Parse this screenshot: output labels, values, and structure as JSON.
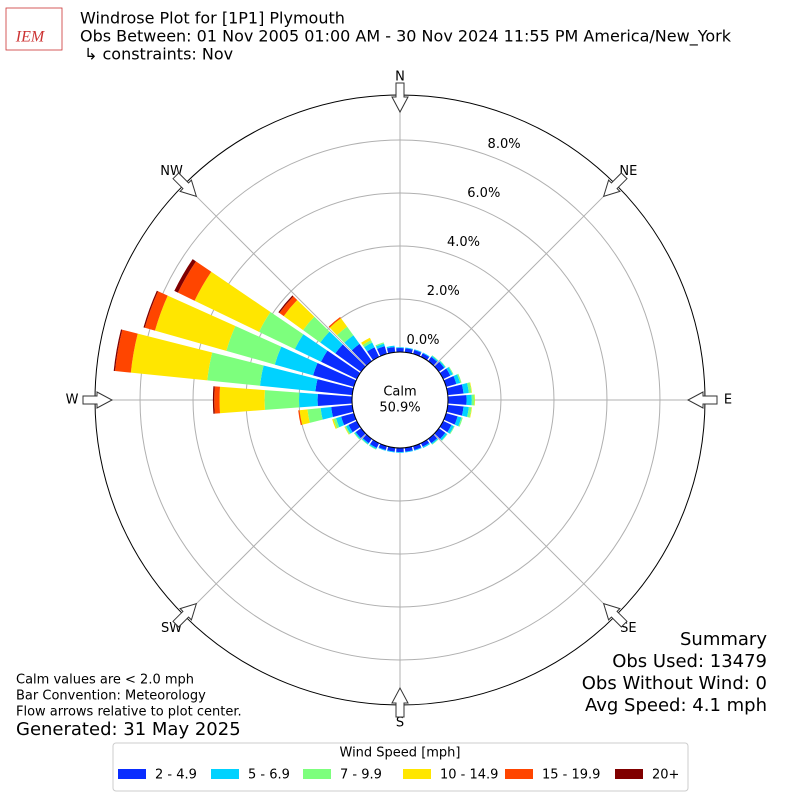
{
  "chart_data": {
    "type": "windrose",
    "logo": "IEM",
    "title": "Windrose Plot for [1P1] Plymouth",
    "subtitle": "Obs Between: 01 Nov 2005 01:00 AM - 30 Nov 2024 11:55 PM America/New_York",
    "constraints": "↳ constraints: Nov",
    "x": [
      0,
      10,
      20,
      30,
      40,
      50,
      60,
      70,
      80,
      90,
      100,
      110,
      120,
      130,
      140,
      150,
      160,
      170,
      180,
      190,
      200,
      210,
      220,
      230,
      240,
      250,
      260,
      270,
      280,
      290,
      300,
      310,
      320,
      330,
      340,
      350
    ],
    "compass": [
      {
        "value": 0,
        "label": "N"
      },
      {
        "value": 45,
        "label": "NE"
      },
      {
        "value": 90,
        "label": "E"
      },
      {
        "value": 135,
        "label": "SE"
      },
      {
        "value": 180,
        "label": "S"
      },
      {
        "value": 225,
        "label": "SW"
      },
      {
        "value": 270,
        "label": "W"
      },
      {
        "value": 315,
        "label": "NW"
      }
    ],
    "ylim": [
      0,
      9.7
    ],
    "yticks": [
      {
        "value": 0,
        "label": "0.0%"
      },
      {
        "value": 2,
        "label": "2.0%"
      },
      {
        "value": 4,
        "label": "4.0%"
      },
      {
        "value": 6,
        "label": "6.0%"
      },
      {
        "value": 8,
        "label": "8.0%"
      }
    ],
    "calm_label": "Calm",
    "calm": 50.9,
    "calm_value_label": "50.9%",
    "legend_title": "Wind Speed [mph]",
    "series": [
      {
        "name": "2 - 4.9",
        "color": "#0a2dff",
        "values": [
          0.15,
          0.15,
          0.15,
          0.15,
          0.2,
          0.25,
          0.3,
          0.4,
          0.6,
          0.7,
          0.6,
          0.45,
          0.35,
          0.3,
          0.2,
          0.15,
          0.15,
          0.15,
          0.15,
          0.15,
          0.15,
          0.2,
          0.2,
          0.25,
          0.35,
          0.5,
          0.8,
          1.3,
          1.4,
          1.6,
          1.5,
          1.2,
          0.8,
          0.4,
          0.3,
          0.2
        ]
      },
      {
        "name": "5 - 6.9",
        "color": "#00d2ff",
        "values": [
          0.03,
          0.03,
          0.03,
          0.03,
          0.05,
          0.05,
          0.1,
          0.15,
          0.2,
          0.2,
          0.2,
          0.15,
          0.1,
          0.08,
          0.05,
          0.05,
          0.03,
          0.03,
          0.03,
          0.03,
          0.03,
          0.05,
          0.05,
          0.05,
          0.1,
          0.2,
          0.4,
          0.7,
          2.1,
          1.5,
          1.1,
          0.7,
          0.4,
          0.2,
          0.1,
          0.05
        ]
      },
      {
        "name": "7 - 9.9",
        "color": "#7dff7d",
        "values": [
          0,
          0,
          0,
          0,
          0.02,
          0.02,
          0.03,
          0.05,
          0.1,
          0.1,
          0.1,
          0.05,
          0.03,
          0.02,
          0.02,
          0,
          0,
          0,
          0,
          0,
          0,
          0.02,
          0.02,
          0.03,
          0.05,
          0.1,
          0.5,
          1.3,
          2.0,
          1.9,
          1.5,
          0.8,
          0.4,
          0.1,
          0.05,
          0
        ]
      },
      {
        "name": "10 - 14.9",
        "color": "#ffe600",
        "values": [
          0,
          0,
          0,
          0,
          0,
          0,
          0,
          0,
          0.02,
          0.02,
          0.02,
          0,
          0,
          0,
          0,
          0,
          0,
          0,
          0,
          0,
          0,
          0,
          0,
          0,
          0.02,
          0.05,
          0.3,
          1.7,
          2.9,
          2.8,
          2.7,
          0.9,
          0.4,
          0.1,
          0,
          0
        ]
      },
      {
        "name": "15 - 19.9",
        "color": "#ff4500",
        "values": [
          0,
          0,
          0,
          0,
          0,
          0,
          0,
          0,
          0,
          0,
          0,
          0,
          0,
          0,
          0,
          0,
          0,
          0,
          0,
          0,
          0,
          0,
          0,
          0,
          0,
          0,
          0.05,
          0.2,
          0.6,
          0.4,
          0.7,
          0.2,
          0.05,
          0,
          0,
          0
        ]
      },
      {
        "name": "20+",
        "color": "#800000",
        "values": [
          0,
          0,
          0,
          0,
          0,
          0,
          0,
          0,
          0,
          0,
          0,
          0,
          0,
          0,
          0,
          0,
          0,
          0,
          0,
          0,
          0,
          0,
          0,
          0,
          0,
          0,
          0,
          0.05,
          0.05,
          0.05,
          0.15,
          0.05,
          0,
          0,
          0,
          0
        ]
      }
    ],
    "notes": [
      "Calm values are < 2.0 mph",
      "Bar Convention: Meteorology",
      "Flow arrows relative to plot center."
    ],
    "generated": "Generated: 31 May 2025",
    "summary": [
      "Summary",
      "Obs Used: 13479",
      "Obs Without Wind: 0",
      "Avg Speed: 4.1 mph"
    ]
  }
}
